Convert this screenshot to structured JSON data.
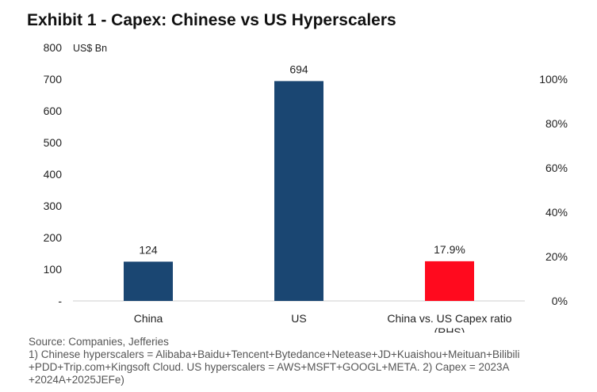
{
  "title": "Exhibit 1 - Capex: Chinese vs US Hyperscalers",
  "chart_data": {
    "type": "bar",
    "title": "Exhibit 1 - Capex: Chinese vs US Hyperscalers",
    "unit_label": "US$ Bn",
    "categories": [
      "China",
      "US",
      "China vs. US Capex ratio (RHS)"
    ],
    "category_label_lines": [
      [
        "China"
      ],
      [
        "US"
      ],
      [
        "China vs. US Capex ratio",
        "(RHS)"
      ]
    ],
    "series": [
      {
        "name": "Capex (US$ Bn)",
        "axis": "left",
        "color": "#1a4672",
        "values": [
          124,
          694,
          null
        ],
        "labels": [
          "124",
          "694",
          null
        ]
      },
      {
        "name": "China vs. US Capex ratio (RHS)",
        "axis": "right",
        "color": "#ff0a1e",
        "values": [
          null,
          null,
          17.9
        ],
        "labels": [
          null,
          null,
          "17.9%"
        ]
      }
    ],
    "left_axis": {
      "ylim": [
        0,
        800
      ],
      "ticks": [
        0,
        100,
        200,
        300,
        400,
        500,
        600,
        700,
        800
      ],
      "tick_labels": [
        "-",
        "100",
        "200",
        "300",
        "400",
        "500",
        "600",
        "700",
        "800"
      ]
    },
    "right_axis": {
      "ylim": [
        0,
        114.3
      ],
      "ticks": [
        0,
        20,
        40,
        60,
        80,
        100
      ],
      "tick_labels": [
        "0%",
        "20%",
        "40%",
        "60%",
        "80%",
        "100%"
      ]
    },
    "grid": false
  },
  "footnote": {
    "source": "Source: Companies, Jefferies",
    "notes": "1) Chinese hyperscalers = Alibaba+Baidu+Tencent+Bytedance+Netease+JD+Kuaishou+Meituan+Bilibili +PDD+Trip.com+Kingsoft Cloud. US hyperscalers = AWS+MSFT+GOOGL+META. 2) Capex = 2023A +2024A+2025JEFe)"
  }
}
